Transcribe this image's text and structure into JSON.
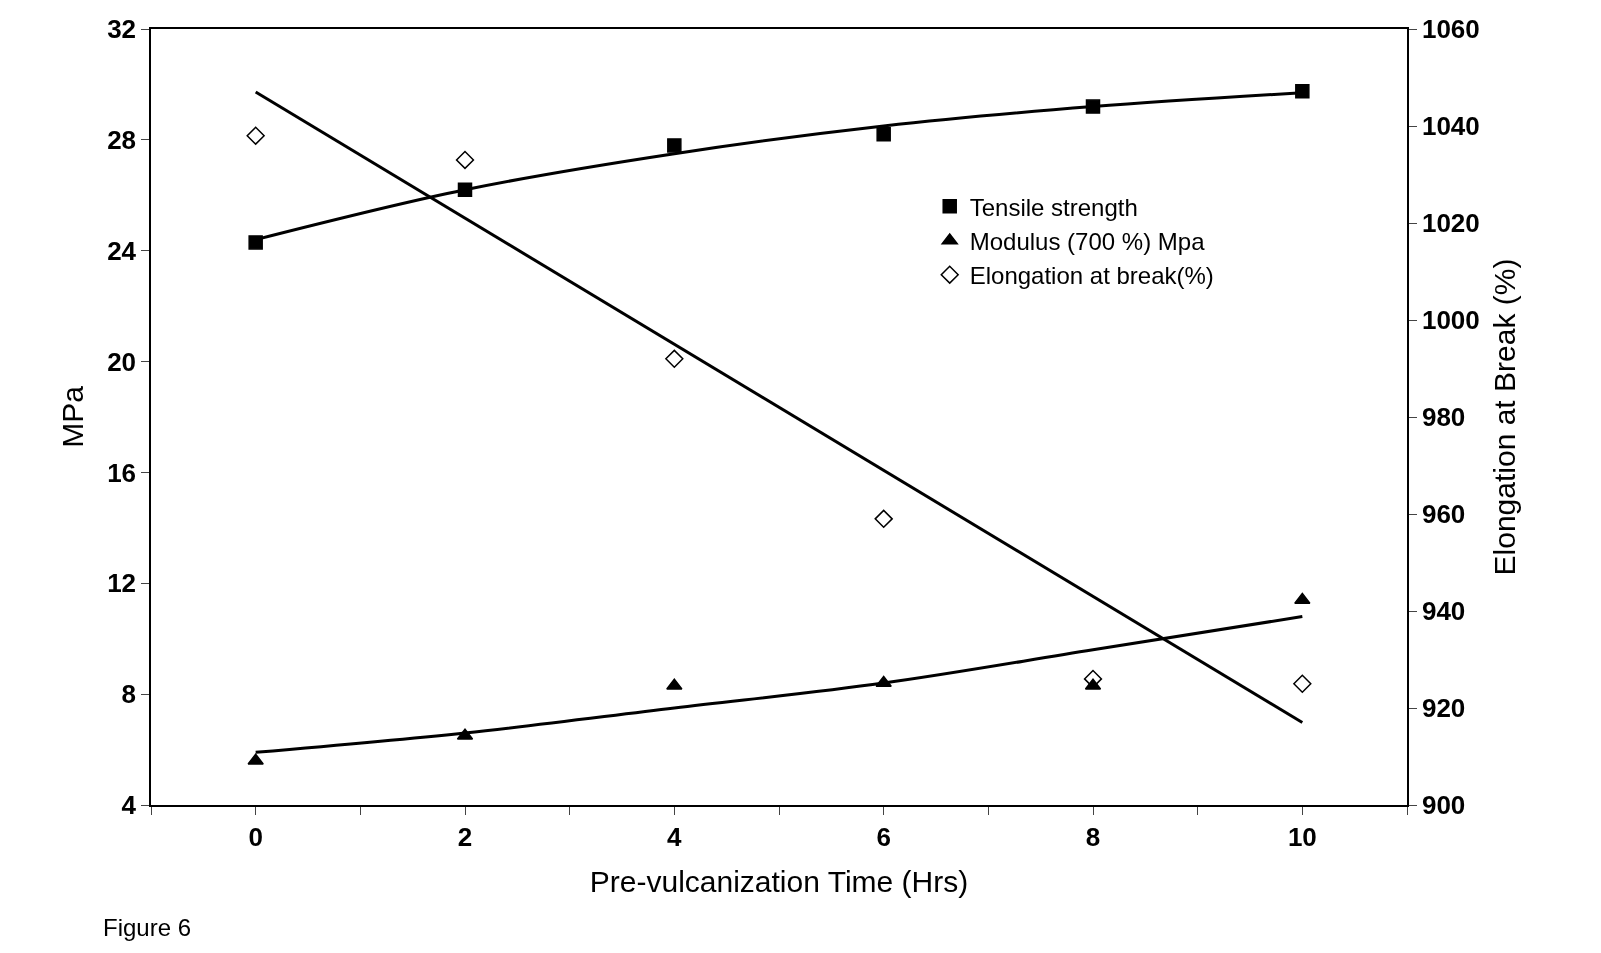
{
  "chart_data": {
    "type": "scatter",
    "xlabel": "Pre-vulcanization Time (Hrs)",
    "ylabel": "MPa",
    "y2label": "Elongation at Break (%)",
    "xlim": [
      -1,
      11
    ],
    "xticks": [
      {
        "value": -1,
        "label": null
      },
      0,
      {
        "value": 1,
        "label": null
      },
      2,
      {
        "value": 3,
        "label": null
      },
      4,
      {
        "value": 5,
        "label": null
      },
      6,
      {
        "value": 7,
        "label": null
      },
      8,
      {
        "value": 9,
        "label": null
      },
      10,
      {
        "value": 11,
        "label": null
      }
    ],
    "ylim": [
      4,
      32
    ],
    "yticks": [
      4,
      8,
      12,
      16,
      20,
      24,
      28,
      32
    ],
    "y2lim": [
      900,
      1060
    ],
    "y2ticks": [
      900,
      920,
      940,
      960,
      980,
      1000,
      1020,
      1040,
      1060
    ],
    "x": [
      0,
      2,
      4,
      6,
      8,
      10
    ],
    "series": [
      {
        "name": "Tensile strength",
        "color": "#000000",
        "marker": "square",
        "values": [
          24.3,
          26.2,
          27.8,
          28.2,
          29.2,
          29.75
        ]
      },
      {
        "name": "Modulus (700 %) Mpa",
        "color": "#000000",
        "marker": "triangle",
        "values": [
          5.6,
          6.5,
          8.3,
          8.4,
          8.3,
          11.4
        ]
      },
      {
        "name": "Elongation at break(%)",
        "color": "#000000",
        "marker": "diamond",
        "axis": "y2",
        "values": [
          1038,
          1033,
          992,
          959,
          926,
          925
        ]
      },
      {
        "type": "line",
        "color": "#000000",
        "x": [
          0,
          2,
          4,
          6,
          8,
          10
        ],
        "values": [
          24.4,
          26.2,
          27.5,
          28.5,
          29.2,
          29.7
        ]
      },
      {
        "type": "line",
        "color": "#000000",
        "x": [
          0,
          2,
          4,
          6,
          8,
          10
        ],
        "values": [
          5.9,
          6.6,
          7.5,
          8.4,
          9.6,
          10.8
        ]
      },
      {
        "type": "line",
        "color": "#000000",
        "axis": "y2",
        "x": [
          0,
          10
        ],
        "values": [
          1047,
          917
        ]
      }
    ],
    "legend": "top right",
    "annotations": [
      "Figure 6"
    ]
  }
}
